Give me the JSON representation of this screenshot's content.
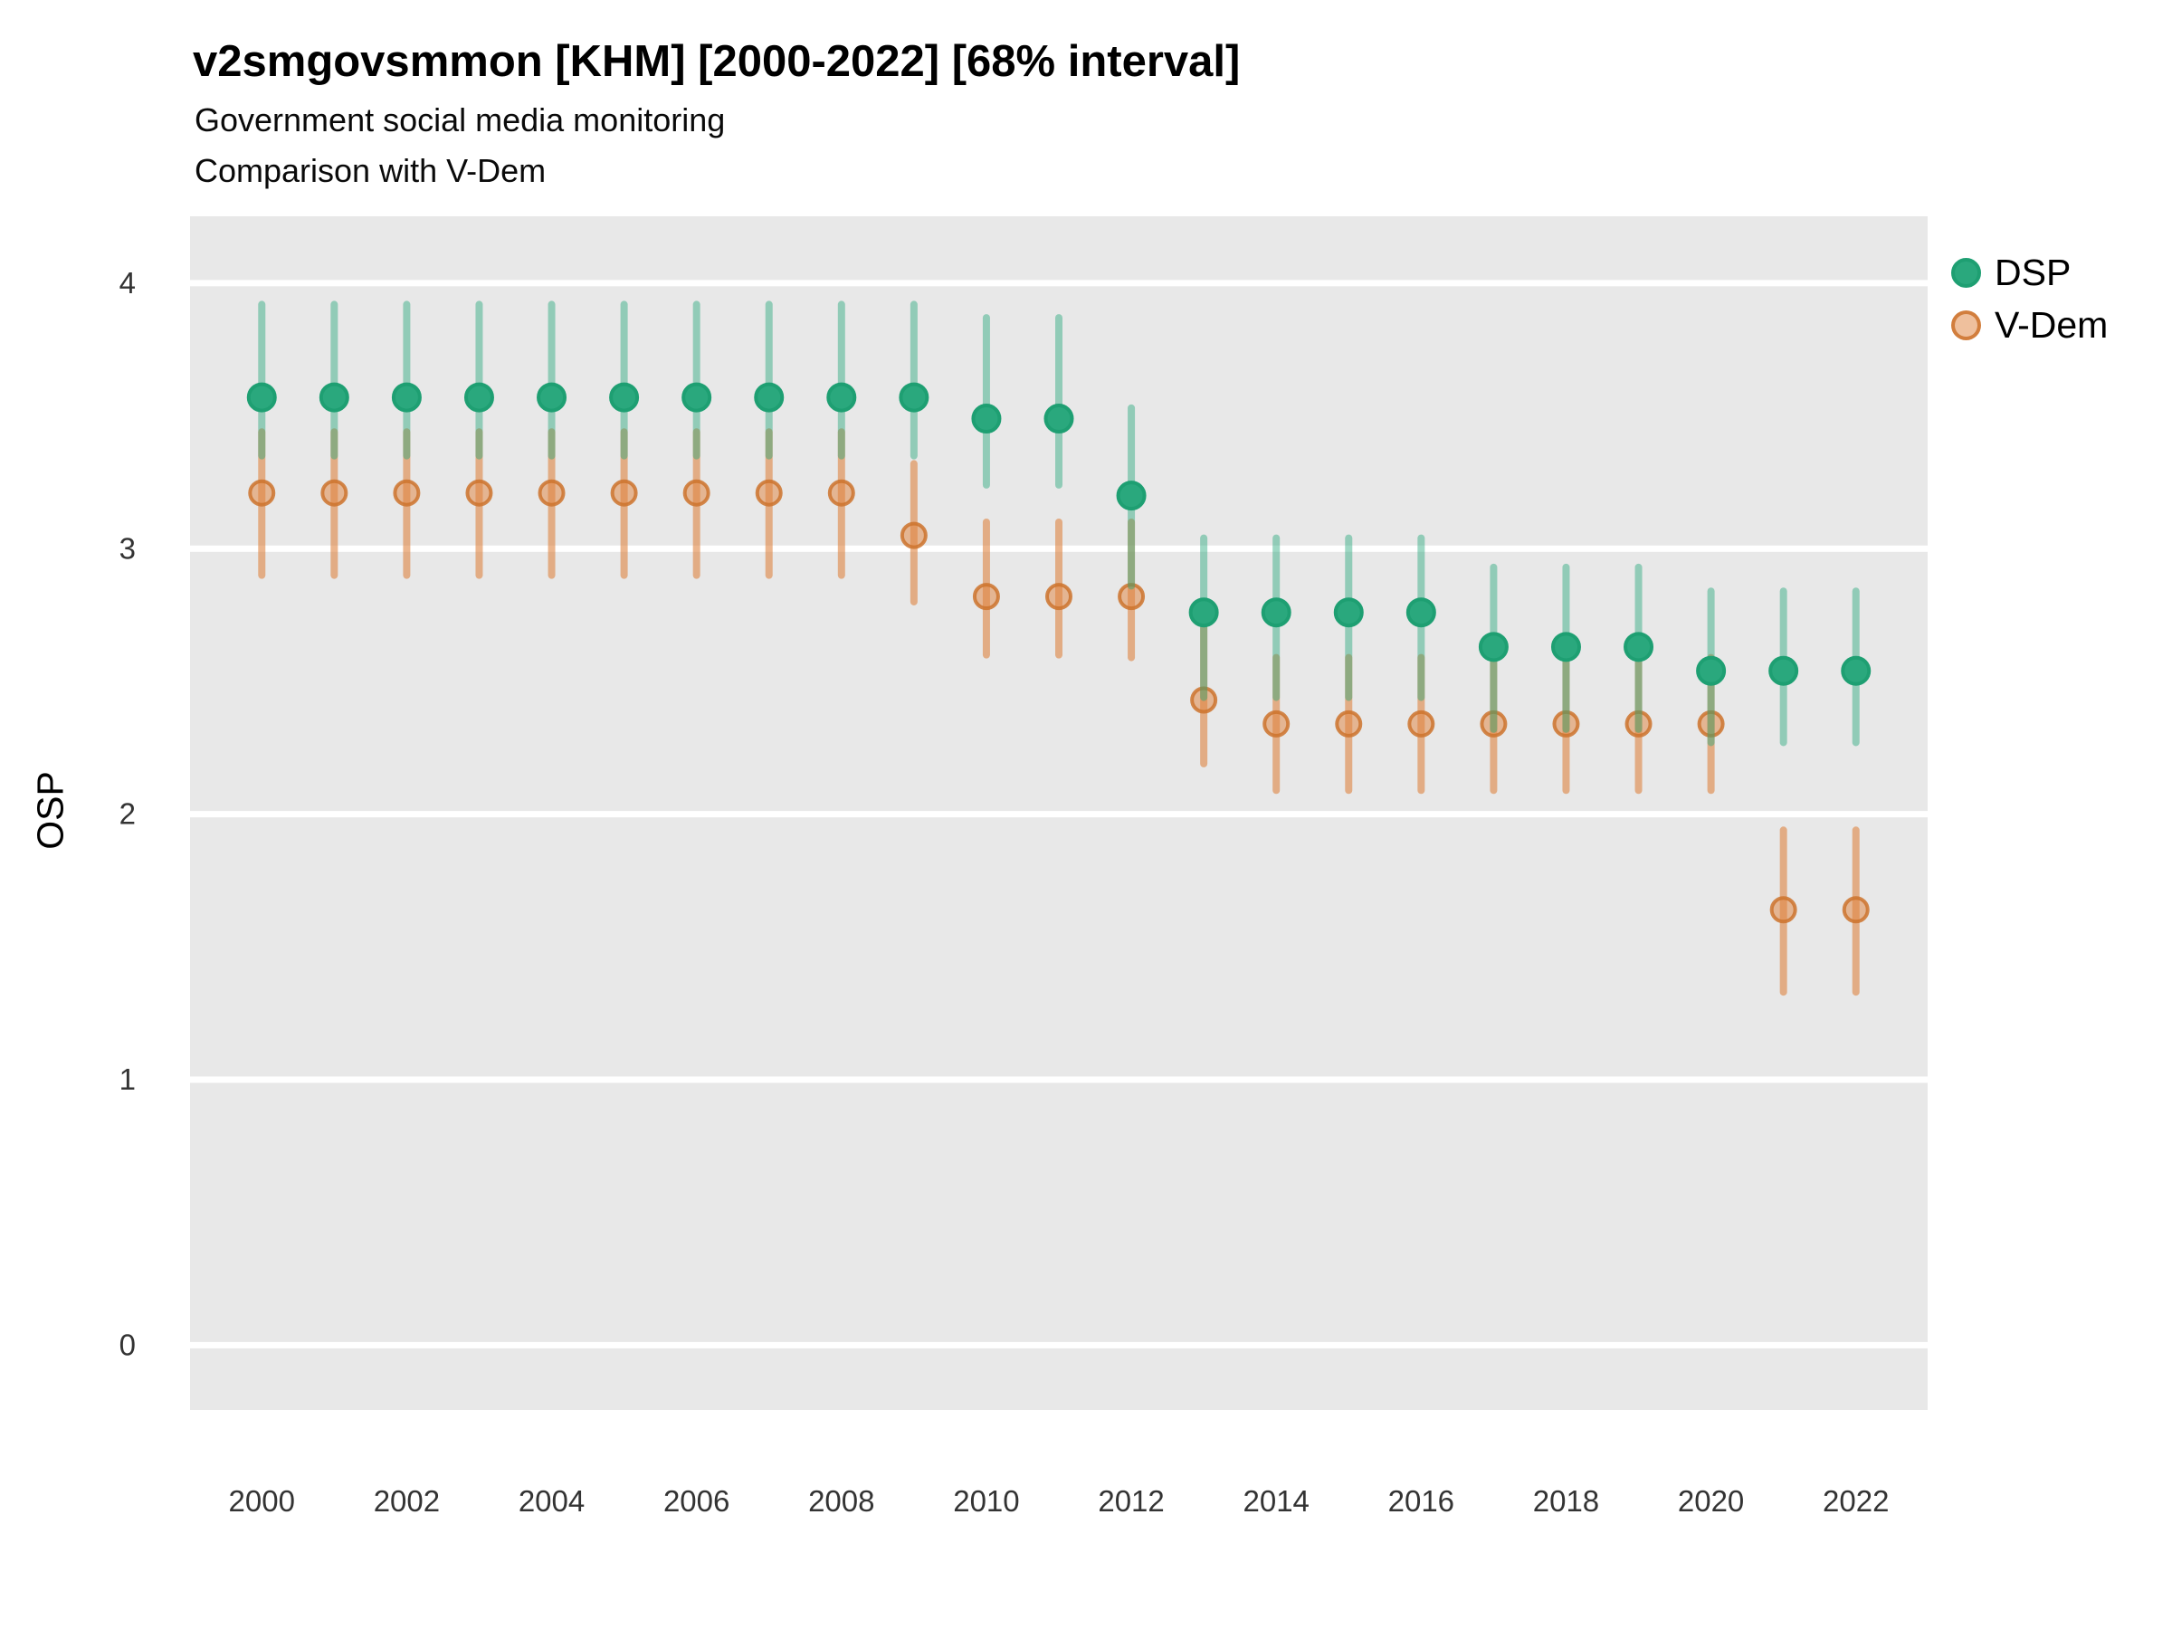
{
  "header": {
    "title": "v2smgovsmmon [KHM] [2000-2022] [68% interval]",
    "subtitle": "Government social media monitoring",
    "subtitle2": "Comparison with V-Dem"
  },
  "legend": {
    "items": [
      {
        "key": "dsp",
        "label": "DSP",
        "fill": "#2aa87d",
        "stroke": "#1e9f72"
      },
      {
        "key": "vdem",
        "label": "V-Dem",
        "fill": "rgba(223,130,60,0.5)",
        "stroke": "rgba(205,115,45,0.85)"
      }
    ]
  },
  "chart_data": {
    "type": "scatter",
    "variant": "pointrange-errorbar",
    "title": "v2smgovsmmon [KHM] [2000-2022] [68% interval]",
    "subtitle": "Government social media monitoring",
    "subtitle2": "Comparison with V-Dem",
    "interval": "68%",
    "country": "KHM",
    "xlabel": "",
    "ylabel": "OSP",
    "x": [
      2000,
      2001,
      2002,
      2003,
      2004,
      2005,
      2006,
      2007,
      2008,
      2009,
      2010,
      2011,
      2012,
      2013,
      2014,
      2015,
      2016,
      2017,
      2018,
      2019,
      2020,
      2021,
      2022
    ],
    "series": [
      {
        "name": "DSP",
        "point_fill": "#2aa87d",
        "point_stroke": "#1e9f72",
        "bar_color": "rgba(41,168,125,0.45)",
        "values": [
          3.57,
          3.57,
          3.57,
          3.57,
          3.57,
          3.57,
          3.57,
          3.57,
          3.57,
          3.57,
          3.49,
          3.49,
          3.2,
          2.76,
          2.76,
          2.76,
          2.76,
          2.63,
          2.63,
          2.63,
          2.54,
          2.54,
          2.54
        ],
        "lower": [
          3.35,
          3.35,
          3.35,
          3.35,
          3.35,
          3.35,
          3.35,
          3.35,
          3.35,
          3.35,
          3.24,
          3.24,
          2.86,
          2.44,
          2.44,
          2.44,
          2.44,
          2.32,
          2.32,
          2.32,
          2.27,
          2.27,
          2.27
        ],
        "upper": [
          3.92,
          3.92,
          3.92,
          3.92,
          3.92,
          3.92,
          3.92,
          3.92,
          3.92,
          3.92,
          3.87,
          3.87,
          3.53,
          3.04,
          3.04,
          3.04,
          3.04,
          2.93,
          2.93,
          2.93,
          2.84,
          2.84,
          2.84
        ]
      },
      {
        "name": "V-Dem",
        "point_fill": "rgba(223,130,60,0.50)",
        "point_stroke": "rgba(205,115,45,0.85)",
        "bar_color": "rgba(223,130,60,0.58)",
        "values": [
          3.21,
          3.21,
          3.21,
          3.21,
          3.21,
          3.21,
          3.21,
          3.21,
          3.21,
          3.05,
          2.82,
          2.82,
          2.82,
          2.43,
          2.34,
          2.34,
          2.34,
          2.34,
          2.34,
          2.34,
          2.34,
          1.64,
          1.64
        ],
        "lower": [
          2.9,
          2.9,
          2.9,
          2.9,
          2.9,
          2.9,
          2.9,
          2.9,
          2.9,
          2.8,
          2.6,
          2.6,
          2.59,
          2.19,
          2.09,
          2.09,
          2.09,
          2.09,
          2.09,
          2.09,
          2.09,
          1.33,
          1.33
        ],
        "upper": [
          3.44,
          3.44,
          3.44,
          3.44,
          3.44,
          3.44,
          3.44,
          3.44,
          3.44,
          3.32,
          3.1,
          3.1,
          3.1,
          2.7,
          2.59,
          2.59,
          2.59,
          2.59,
          2.59,
          2.59,
          2.59,
          1.94,
          1.94
        ]
      }
    ],
    "yticks": [
      0,
      1,
      2,
      3,
      4
    ],
    "xticks": [
      2000,
      2002,
      2004,
      2006,
      2008,
      2010,
      2012,
      2014,
      2016,
      2018,
      2020,
      2022
    ],
    "ylim": [
      -0.244,
      4.252
    ],
    "xlim": [
      1999.01,
      2022.99
    ],
    "grid": "horizontal-major-only",
    "legend_position": "right",
    "style": {
      "panel_bg": "#e8e8e8",
      "gridline": "#ffffff",
      "tick_label_color": "#333333"
    }
  }
}
